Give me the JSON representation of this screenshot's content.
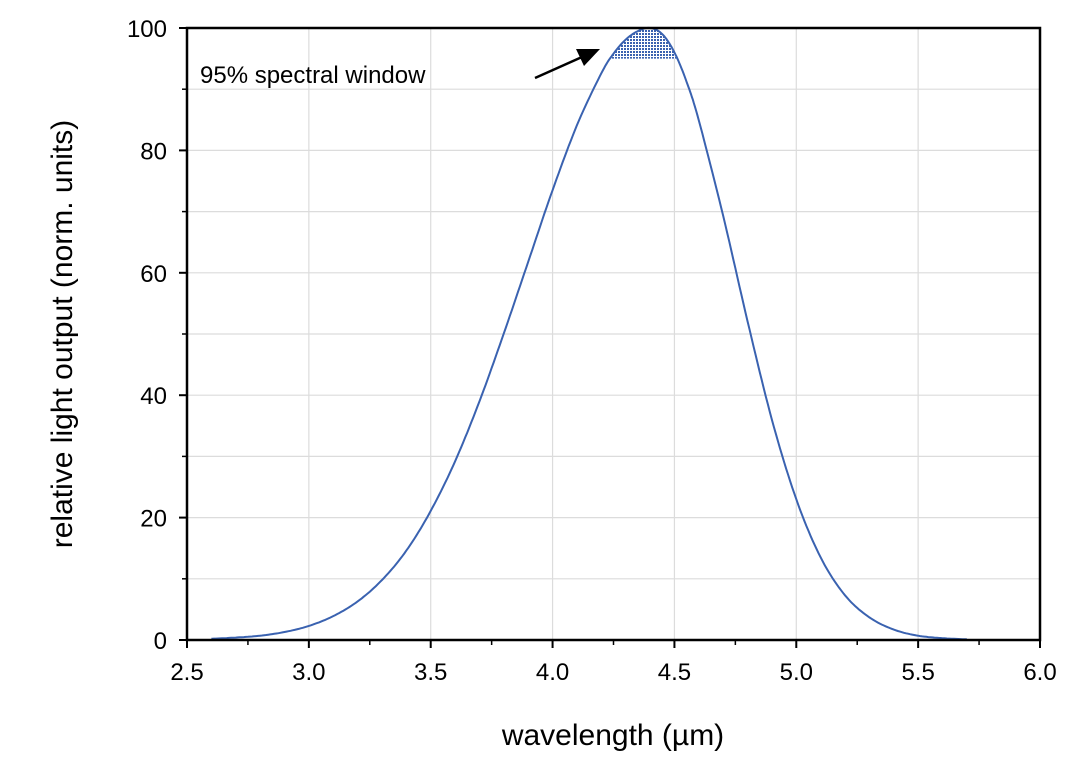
{
  "chart_data": {
    "type": "line",
    "title": "",
    "xlabel": "wavelength (µm)",
    "ylabel": "relative light output (norm. units)",
    "xlim": [
      2.5,
      6.0
    ],
    "ylim": [
      0,
      100
    ],
    "xticks": [
      "2.5",
      "3.0",
      "3.5",
      "4.0",
      "4.5",
      "5.0",
      "5.5",
      "6.0"
    ],
    "yticks": [
      "0",
      "20",
      "40",
      "60",
      "80",
      "100"
    ],
    "grid": true,
    "line_color": "#3a62b0",
    "series": [
      {
        "x": [
          2.6,
          2.7,
          2.8,
          2.9,
          3.0,
          3.1,
          3.2,
          3.3,
          3.4,
          3.5,
          3.6,
          3.7,
          3.8,
          3.9,
          4.0,
          4.1,
          4.2,
          4.25,
          4.3,
          4.35,
          4.4,
          4.45,
          4.5,
          4.55,
          4.6,
          4.7,
          4.8,
          4.9,
          5.0,
          5.1,
          5.2,
          5.3,
          5.4,
          5.5,
          5.6,
          5.7
        ],
        "y": [
          0.2,
          0.4,
          0.7,
          1.3,
          2.3,
          3.9,
          6.3,
          9.8,
          14.6,
          21.1,
          29.2,
          39.0,
          50.1,
          61.8,
          73.5,
          84.1,
          92.6,
          95.8,
          98.1,
          99.5,
          100,
          99.0,
          96.0,
          91.2,
          84.9,
          69.3,
          52.1,
          36.0,
          23.0,
          13.5,
          7.3,
          3.7,
          1.7,
          0.7,
          0.3,
          0.1
        ]
      }
    ],
    "shaded_region": {
      "threshold": 95,
      "color": "#3a62b0"
    },
    "annotation": {
      "text": "95% spectral window"
    }
  }
}
